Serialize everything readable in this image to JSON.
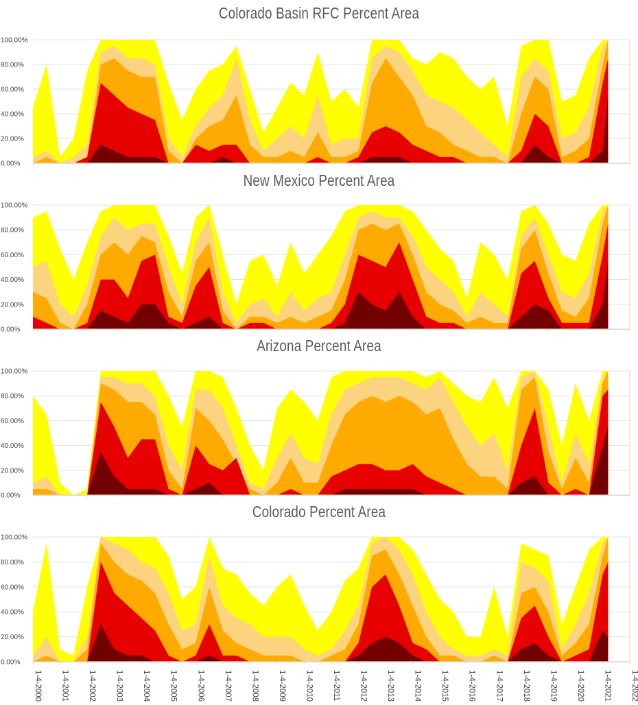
{
  "colors": {
    "D0": "#ffff00",
    "D1": "#fcd37f",
    "D2": "#ffaa00",
    "D3": "#e60000",
    "D4": "#730000",
    "grid": "#e0e0e0",
    "axis": "#d8d8c8"
  },
  "x_tick_labels": [
    "1-4-2000",
    "1-4-2001",
    "1-4-2002",
    "1-4-2003",
    "1-4-2004",
    "1-4-2005",
    "1-4-2006",
    "1-4-2007",
    "1-4-2008",
    "1-4-2009",
    "1-4-2010",
    "1-4-2011",
    "1-4-2012",
    "1-4-2013",
    "1-4-2014",
    "1-4-2015",
    "1-4-2016",
    "1-4-2017",
    "1-4-2018",
    "1-4-2019",
    "1-4-2020",
    "1-4-2021",
    "1-4-2022"
  ],
  "y_tick_labels": [
    "100.00%",
    "80.00%",
    "60.00%",
    "40.00%",
    "20.00%",
    "0.00%"
  ],
  "chart_data": [
    {
      "type": "area",
      "title": "Colorado Basin RFC Percent Area",
      "ylim": [
        0,
        100
      ],
      "x": [
        2000.0,
        2000.5,
        2001.0,
        2001.5,
        2002.0,
        2002.5,
        2003.0,
        2003.5,
        2004.0,
        2004.5,
        2005.0,
        2005.5,
        2006.0,
        2006.5,
        2007.0,
        2007.5,
        2008.0,
        2008.5,
        2009.0,
        2009.5,
        2010.0,
        2010.5,
        2011.0,
        2011.5,
        2012.0,
        2012.5,
        2013.0,
        2013.5,
        2014.0,
        2014.5,
        2015.0,
        2015.5,
        2016.0,
        2016.5,
        2017.0,
        2017.5,
        2018.0,
        2018.5,
        2019.0,
        2019.5,
        2020.0,
        2020.5,
        2021.0,
        2021.2
      ],
      "series": [
        {
          "values": [
            45,
            80,
            5,
            20,
            75,
            100,
            100,
            100,
            100,
            100,
            65,
            35,
            60,
            75,
            80,
            95,
            60,
            25,
            45,
            65,
            55,
            90,
            50,
            60,
            45,
            100,
            100,
            100,
            85,
            80,
            90,
            85,
            70,
            60,
            70,
            30,
            95,
            100,
            100,
            50,
            55,
            85,
            100,
            100
          ]
        },
        {
          "values": [
            5,
            10,
            0,
            5,
            15,
            90,
            95,
            85,
            85,
            80,
            20,
            5,
            30,
            45,
            55,
            85,
            35,
            10,
            20,
            30,
            20,
            55,
            15,
            20,
            20,
            85,
            95,
            90,
            75,
            55,
            50,
            45,
            35,
            25,
            15,
            5,
            70,
            85,
            75,
            20,
            25,
            45,
            95,
            100
          ]
        },
        {
          "values": [
            0,
            5,
            0,
            0,
            5,
            80,
            85,
            75,
            70,
            70,
            10,
            0,
            20,
            30,
            35,
            55,
            15,
            5,
            5,
            10,
            5,
            25,
            5,
            5,
            10,
            65,
            85,
            70,
            55,
            30,
            25,
            15,
            10,
            5,
            5,
            0,
            40,
            70,
            60,
            5,
            10,
            20,
            80,
            100
          ]
        },
        {
          "values": [
            0,
            0,
            0,
            0,
            5,
            65,
            55,
            45,
            40,
            35,
            0,
            0,
            15,
            10,
            15,
            15,
            0,
            0,
            0,
            0,
            0,
            5,
            0,
            0,
            5,
            25,
            30,
            25,
            15,
            10,
            5,
            5,
            0,
            0,
            0,
            0,
            10,
            40,
            30,
            0,
            0,
            5,
            65,
            85
          ]
        },
        {
          "values": [
            0,
            0,
            0,
            0,
            0,
            15,
            10,
            5,
            5,
            5,
            0,
            0,
            0,
            0,
            5,
            0,
            0,
            0,
            0,
            0,
            0,
            0,
            0,
            0,
            0,
            5,
            5,
            5,
            0,
            0,
            0,
            0,
            0,
            0,
            0,
            0,
            0,
            15,
            5,
            0,
            0,
            0,
            10,
            55
          ]
        }
      ]
    },
    {
      "type": "area",
      "title": "New Mexico Percent Area",
      "ylim": [
        0,
        100
      ],
      "x": [
        2000.0,
        2000.5,
        2001.0,
        2001.5,
        2002.0,
        2002.5,
        2003.0,
        2003.5,
        2004.0,
        2004.5,
        2005.0,
        2005.5,
        2006.0,
        2006.5,
        2007.0,
        2007.5,
        2008.0,
        2008.5,
        2009.0,
        2009.5,
        2010.0,
        2010.5,
        2011.0,
        2011.5,
        2012.0,
        2012.5,
        2013.0,
        2013.5,
        2014.0,
        2014.5,
        2015.0,
        2015.5,
        2016.0,
        2016.5,
        2017.0,
        2017.5,
        2018.0,
        2018.5,
        2019.0,
        2019.5,
        2020.0,
        2020.5,
        2021.0,
        2021.2
      ],
      "series": [
        {
          "values": [
            90,
            95,
            65,
            40,
            70,
            95,
            100,
            100,
            100,
            100,
            75,
            45,
            90,
            100,
            60,
            20,
            55,
            60,
            35,
            70,
            45,
            60,
            75,
            95,
            100,
            100,
            100,
            100,
            95,
            80,
            65,
            55,
            25,
            70,
            60,
            40,
            95,
            100,
            85,
            60,
            55,
            85,
            100,
            100
          ]
        },
        {
          "values": [
            50,
            55,
            20,
            10,
            35,
            75,
            90,
            80,
            85,
            85,
            50,
            20,
            70,
            90,
            30,
            5,
            20,
            25,
            10,
            30,
            15,
            25,
            30,
            60,
            90,
            95,
            90,
            90,
            75,
            50,
            40,
            30,
            10,
            30,
            20,
            10,
            75,
            90,
            60,
            30,
            25,
            45,
            95,
            100
          ]
        },
        {
          "values": [
            30,
            25,
            5,
            0,
            20,
            60,
            70,
            60,
            75,
            70,
            30,
            10,
            55,
            70,
            15,
            0,
            10,
            10,
            5,
            10,
            5,
            10,
            15,
            40,
            80,
            85,
            80,
            85,
            60,
            30,
            20,
            15,
            5,
            10,
            5,
            5,
            65,
            80,
            45,
            15,
            10,
            25,
            85,
            100
          ]
        },
        {
          "values": [
            10,
            5,
            0,
            0,
            5,
            40,
            40,
            25,
            55,
            60,
            10,
            5,
            35,
            50,
            5,
            0,
            5,
            5,
            0,
            0,
            0,
            0,
            5,
            20,
            60,
            55,
            50,
            70,
            40,
            10,
            5,
            5,
            0,
            0,
            0,
            0,
            45,
            55,
            25,
            5,
            5,
            5,
            60,
            85
          ]
        },
        {
          "values": [
            0,
            0,
            0,
            0,
            0,
            15,
            10,
            5,
            20,
            20,
            5,
            0,
            5,
            10,
            0,
            0,
            0,
            0,
            0,
            0,
            0,
            0,
            0,
            5,
            30,
            20,
            15,
            30,
            10,
            0,
            0,
            0,
            0,
            0,
            0,
            0,
            10,
            20,
            15,
            0,
            0,
            0,
            20,
            55
          ]
        }
      ]
    },
    {
      "type": "area",
      "title": "Arizona Percent Area",
      "ylim": [
        0,
        100
      ],
      "x": [
        2000.0,
        2000.5,
        2001.0,
        2001.5,
        2002.0,
        2002.5,
        2003.0,
        2003.5,
        2004.0,
        2004.5,
        2005.0,
        2005.5,
        2006.0,
        2006.5,
        2007.0,
        2007.5,
        2008.0,
        2008.5,
        2009.0,
        2009.5,
        2010.0,
        2010.5,
        2011.0,
        2011.5,
        2012.0,
        2012.5,
        2013.0,
        2013.5,
        2014.0,
        2014.5,
        2015.0,
        2015.5,
        2016.0,
        2016.5,
        2017.0,
        2017.5,
        2018.0,
        2018.5,
        2019.0,
        2019.5,
        2020.0,
        2020.5,
        2021.0,
        2021.2
      ],
      "series": [
        {
          "values": [
            80,
            65,
            10,
            0,
            5,
            100,
            100,
            100,
            100,
            100,
            80,
            55,
            100,
            100,
            95,
            70,
            40,
            20,
            70,
            85,
            75,
            60,
            95,
            100,
            100,
            100,
            100,
            100,
            100,
            95,
            100,
            90,
            80,
            75,
            95,
            70,
            100,
            100,
            85,
            40,
            90,
            60,
            100,
            100
          ]
        },
        {
          "values": [
            10,
            15,
            0,
            0,
            0,
            95,
            95,
            90,
            90,
            80,
            40,
            20,
            85,
            85,
            70,
            40,
            10,
            5,
            30,
            50,
            30,
            25,
            65,
            85,
            90,
            95,
            95,
            95,
            90,
            85,
            95,
            75,
            55,
            40,
            50,
            20,
            95,
            100,
            55,
            10,
            50,
            25,
            95,
            100
          ]
        },
        {
          "values": [
            5,
            5,
            0,
            0,
            0,
            90,
            85,
            75,
            75,
            65,
            20,
            5,
            70,
            60,
            45,
            25,
            5,
            0,
            10,
            30,
            10,
            10,
            40,
            65,
            75,
            80,
            75,
            80,
            75,
            65,
            70,
            45,
            25,
            15,
            15,
            5,
            85,
            95,
            35,
            5,
            30,
            10,
            90,
            100
          ]
        },
        {
          "values": [
            0,
            0,
            0,
            0,
            0,
            75,
            55,
            30,
            45,
            45,
            5,
            0,
            40,
            25,
            20,
            30,
            0,
            0,
            0,
            5,
            0,
            0,
            15,
            20,
            25,
            25,
            20,
            20,
            25,
            15,
            10,
            5,
            0,
            0,
            0,
            0,
            40,
            70,
            10,
            0,
            5,
            0,
            80,
            85
          ]
        },
        {
          "values": [
            0,
            0,
            0,
            0,
            0,
            35,
            15,
            5,
            5,
            5,
            0,
            0,
            5,
            10,
            0,
            0,
            0,
            0,
            0,
            0,
            0,
            0,
            0,
            5,
            5,
            5,
            5,
            5,
            5,
            0,
            0,
            0,
            0,
            0,
            0,
            0,
            10,
            15,
            0,
            0,
            0,
            0,
            40,
            55
          ]
        }
      ]
    },
    {
      "type": "area",
      "title": "Colorado Percent Area",
      "ylim": [
        0,
        100
      ],
      "x": [
        2000.0,
        2000.5,
        2001.0,
        2001.5,
        2002.0,
        2002.5,
        2003.0,
        2003.5,
        2004.0,
        2004.5,
        2005.0,
        2005.5,
        2006.0,
        2006.5,
        2007.0,
        2007.5,
        2008.0,
        2008.5,
        2009.0,
        2009.5,
        2010.0,
        2010.5,
        2011.0,
        2011.5,
        2012.0,
        2012.5,
        2013.0,
        2013.5,
        2014.0,
        2014.5,
        2015.0,
        2015.5,
        2016.0,
        2016.5,
        2017.0,
        2017.5,
        2018.0,
        2018.5,
        2019.0,
        2019.5,
        2020.0,
        2020.5,
        2021.0,
        2021.2
      ],
      "series": [
        {
          "values": [
            40,
            95,
            10,
            5,
            60,
            100,
            100,
            100,
            100,
            100,
            85,
            50,
            60,
            100,
            75,
            70,
            55,
            45,
            60,
            70,
            45,
            25,
            40,
            65,
            75,
            100,
            100,
            100,
            90,
            70,
            50,
            40,
            20,
            20,
            60,
            20,
            95,
            90,
            85,
            30,
            60,
            90,
            100,
            100
          ]
        },
        {
          "values": [
            5,
            20,
            0,
            0,
            20,
            100,
            95,
            90,
            80,
            75,
            55,
            25,
            30,
            85,
            45,
            35,
            30,
            20,
            20,
            20,
            10,
            5,
            10,
            25,
            45,
            95,
            100,
            90,
            70,
            40,
            20,
            10,
            5,
            5,
            10,
            5,
            80,
            75,
            65,
            10,
            30,
            55,
            95,
            100
          ]
        },
        {
          "values": [
            0,
            5,
            0,
            0,
            10,
            95,
            80,
            70,
            65,
            55,
            30,
            10,
            15,
            60,
            25,
            15,
            10,
            5,
            5,
            5,
            0,
            0,
            5,
            10,
            30,
            85,
            90,
            70,
            45,
            20,
            5,
            5,
            0,
            0,
            5,
            0,
            55,
            60,
            40,
            5,
            15,
            30,
            85,
            100
          ]
        },
        {
          "values": [
            0,
            0,
            0,
            0,
            0,
            80,
            55,
            45,
            35,
            25,
            5,
            0,
            5,
            30,
            5,
            5,
            0,
            0,
            0,
            0,
            0,
            0,
            0,
            0,
            15,
            60,
            70,
            45,
            15,
            10,
            0,
            0,
            0,
            0,
            0,
            0,
            35,
            45,
            20,
            0,
            5,
            10,
            70,
            80
          ]
        },
        {
          "values": [
            0,
            0,
            0,
            0,
            0,
            30,
            10,
            5,
            5,
            0,
            0,
            0,
            0,
            5,
            0,
            0,
            0,
            0,
            0,
            0,
            0,
            0,
            0,
            0,
            5,
            15,
            20,
            15,
            5,
            0,
            0,
            0,
            0,
            0,
            0,
            0,
            10,
            15,
            5,
            0,
            0,
            0,
            25,
            20
          ]
        }
      ]
    }
  ]
}
